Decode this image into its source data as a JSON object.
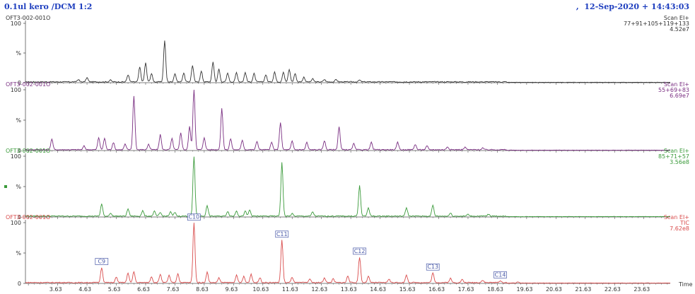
{
  "header": {
    "sample_title": "0.1ul kero /DCM 1:2",
    "datetime_prefix": ",",
    "datetime": "12-Sep-2020 + 14:43:03"
  },
  "chart_data": {
    "type": "line",
    "x_axis": {
      "label": "Time",
      "range": [
        2.6,
        24.6
      ],
      "ticks": [
        "3.63",
        "4.63",
        "5.63",
        "6.63",
        "7.63",
        "8.63",
        "9.63",
        "10.63",
        "11.63",
        "12.63",
        "13.63",
        "14.63",
        "15.63",
        "16.63",
        "17.63",
        "18.63",
        "19.63",
        "20.63",
        "21.63",
        "22.63",
        "23.63"
      ]
    },
    "y_axis": {
      "ticks": [
        "0",
        "%",
        "100"
      ],
      "range": [
        0,
        100
      ]
    },
    "series": [
      {
        "file": "OFT3-002-001O",
        "scan": "Scan EI+",
        "ions": "77+91+105+119+133",
        "intensity": "4.52e7",
        "color": "#333333",
        "peaks": [
          [
            4.4,
            4
          ],
          [
            4.7,
            7
          ],
          [
            5.5,
            3
          ],
          [
            6.1,
            12
          ],
          [
            6.5,
            25
          ],
          [
            6.7,
            32
          ],
          [
            6.9,
            14
          ],
          [
            7.35,
            70
          ],
          [
            7.7,
            14
          ],
          [
            8.0,
            15
          ],
          [
            8.3,
            28
          ],
          [
            8.6,
            18
          ],
          [
            9.0,
            34
          ],
          [
            9.2,
            22
          ],
          [
            9.5,
            15
          ],
          [
            9.8,
            16
          ],
          [
            10.1,
            16
          ],
          [
            10.4,
            14
          ],
          [
            10.8,
            12
          ],
          [
            11.1,
            17
          ],
          [
            11.4,
            17
          ],
          [
            11.6,
            21
          ],
          [
            11.8,
            14
          ],
          [
            12.1,
            8
          ],
          [
            12.4,
            5
          ],
          [
            12.8,
            4
          ],
          [
            13.2,
            4
          ],
          [
            14.0,
            3
          ]
        ]
      },
      {
        "file": "OFT3-002-001O",
        "scan": "Scan EI+",
        "ions": "55+69+83",
        "intensity": "6.69e7",
        "color": "#7a2f82",
        "peaks": [
          [
            3.5,
            18
          ],
          [
            4.6,
            6
          ],
          [
            5.1,
            20
          ],
          [
            5.3,
            19
          ],
          [
            5.6,
            12
          ],
          [
            6.0,
            9
          ],
          [
            6.3,
            88
          ],
          [
            6.8,
            9
          ],
          [
            7.2,
            25
          ],
          [
            7.6,
            18
          ],
          [
            7.9,
            28
          ],
          [
            8.2,
            38
          ],
          [
            8.35,
            100
          ],
          [
            8.7,
            20
          ],
          [
            9.3,
            68
          ],
          [
            9.6,
            18
          ],
          [
            10.0,
            16
          ],
          [
            10.5,
            14
          ],
          [
            11.0,
            12
          ],
          [
            11.3,
            45
          ],
          [
            11.7,
            14
          ],
          [
            12.2,
            12
          ],
          [
            12.8,
            15
          ],
          [
            13.3,
            38
          ],
          [
            13.8,
            10
          ],
          [
            14.4,
            12
          ],
          [
            15.3,
            12
          ],
          [
            15.9,
            9
          ],
          [
            16.3,
            6
          ],
          [
            17.0,
            5
          ],
          [
            17.6,
            4
          ],
          [
            18.2,
            3
          ]
        ]
      },
      {
        "file": "OFT3-002-001O",
        "scan": "Scan EI+",
        "ions": "85+71+57",
        "intensity": "3.56e8",
        "color": "#3a9a3a",
        "peaks": [
          [
            5.2,
            20
          ],
          [
            5.5,
            5
          ],
          [
            6.1,
            12
          ],
          [
            6.6,
            9
          ],
          [
            7.0,
            8
          ],
          [
            7.2,
            6
          ],
          [
            7.55,
            7
          ],
          [
            7.7,
            6
          ],
          [
            8.35,
            98
          ],
          [
            8.8,
            17
          ],
          [
            9.5,
            8
          ],
          [
            9.8,
            9
          ],
          [
            10.1,
            8
          ],
          [
            10.25,
            10
          ],
          [
            11.35,
            88
          ],
          [
            11.7,
            4
          ],
          [
            12.4,
            7
          ],
          [
            14.0,
            50
          ],
          [
            14.3,
            14
          ],
          [
            15.6,
            14
          ],
          [
            16.5,
            18
          ],
          [
            17.1,
            5
          ],
          [
            17.7,
            3
          ],
          [
            18.4,
            3
          ]
        ]
      },
      {
        "file": "OFT3-002-001O",
        "scan": "Scan EI+",
        "ions": "TIC",
        "intensity": "7.62e8",
        "color": "#d94c4c",
        "peaks": [
          [
            5.2,
            25
          ],
          [
            5.7,
            9
          ],
          [
            6.1,
            16
          ],
          [
            6.3,
            18
          ],
          [
            6.9,
            10
          ],
          [
            7.2,
            14
          ],
          [
            7.5,
            12
          ],
          [
            7.8,
            15
          ],
          [
            8.35,
            98
          ],
          [
            8.8,
            17
          ],
          [
            9.2,
            8
          ],
          [
            9.8,
            12
          ],
          [
            10.05,
            10
          ],
          [
            10.3,
            14
          ],
          [
            10.6,
            8
          ],
          [
            11.35,
            70
          ],
          [
            11.7,
            9
          ],
          [
            12.3,
            6
          ],
          [
            12.8,
            8
          ],
          [
            13.1,
            6
          ],
          [
            13.6,
            11
          ],
          [
            14.0,
            42
          ],
          [
            14.3,
            10
          ],
          [
            15.0,
            6
          ],
          [
            15.6,
            12
          ],
          [
            16.5,
            16
          ],
          [
            17.1,
            7
          ],
          [
            17.5,
            5
          ],
          [
            18.2,
            4
          ],
          [
            18.8,
            3
          ],
          [
            19.4,
            2
          ]
        ]
      }
    ],
    "annotations": [
      {
        "label": "C9",
        "panel": 4,
        "x": 5.2
      },
      {
        "label": "C10",
        "panel": 4,
        "x": 8.35
      },
      {
        "label": "C11",
        "panel": 4,
        "x": 11.35
      },
      {
        "label": "C12",
        "panel": 4,
        "x": 14.0
      },
      {
        "label": "C13",
        "panel": 4,
        "x": 16.5
      },
      {
        "label": "C14",
        "panel": 4,
        "x": 18.8
      }
    ]
  }
}
